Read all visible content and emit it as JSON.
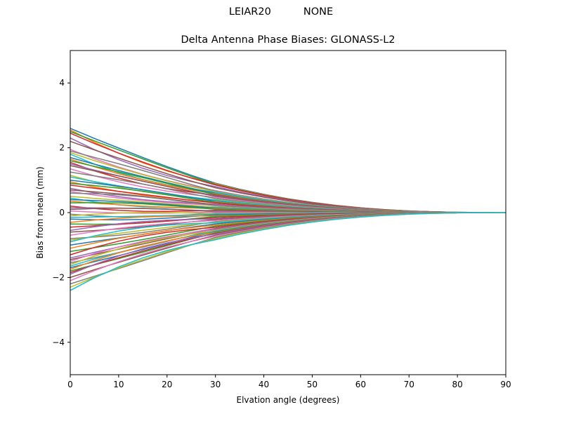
{
  "figure": {
    "suptitle": "LEIAR20          NONE",
    "title": "Delta Antenna Phase Biases: GLONASS-L2"
  },
  "chart_data": {
    "type": "line",
    "title": "Delta Antenna Phase Biases: GLONASS-L2",
    "suptitle": "LEIAR20          NONE",
    "xlabel": "Elvation angle (degrees)",
    "ylabel": "Bias from mean (mm)",
    "xlim": [
      0,
      90
    ],
    "ylim": [
      -5,
      5
    ],
    "xticks": [
      0,
      10,
      20,
      30,
      40,
      50,
      60,
      70,
      80,
      90
    ],
    "yticks": [
      -4,
      -2,
      0,
      2,
      4
    ],
    "ytick_labels": [
      "−4",
      "−2",
      "0",
      "2",
      "4"
    ],
    "grid": false,
    "legend": "none",
    "x": [
      0,
      5,
      10,
      15,
      20,
      25,
      30,
      35,
      40,
      45,
      50,
      55,
      60,
      65,
      70,
      75,
      80,
      85,
      90
    ],
    "series_note": "Approximately 70 per-satellite curves; each starts at the listed value at 0 deg and decays toward 0 at 90 deg",
    "colors": [
      "#1f77b4",
      "#ff7f0e",
      "#2ca02c",
      "#d62728",
      "#9467bd",
      "#8c564b",
      "#e377c2",
      "#7f7f7f",
      "#bcbd22",
      "#17becf"
    ],
    "start_values": [
      2.6,
      2.55,
      2.5,
      2.45,
      2.3,
      2.2,
      1.95,
      1.9,
      1.85,
      1.8,
      1.7,
      1.65,
      1.6,
      1.55,
      1.5,
      1.45,
      1.35,
      1.25,
      1.15,
      1.1,
      1.0,
      0.95,
      0.9,
      0.85,
      0.75,
      0.7,
      0.65,
      0.6,
      0.5,
      0.45,
      0.4,
      0.35,
      0.3,
      0.2,
      0.15,
      0.1,
      0.05,
      -0.05,
      -0.1,
      -0.15,
      -0.2,
      -0.3,
      -0.35,
      -0.45,
      -0.55,
      -0.6,
      -0.7,
      -0.8,
      -0.85,
      -0.9,
      -1.0,
      -1.1,
      -1.2,
      -1.3,
      -1.4,
      -1.45,
      -1.5,
      -1.55,
      -1.6,
      -1.65,
      -1.7,
      -1.75,
      -1.8,
      -1.85,
      -1.9,
      -2.0,
      -2.1,
      -2.2,
      -2.3,
      -2.4
    ],
    "mid_offsets": [
      0.25,
      -0.15,
      0.3,
      0.1,
      -0.2,
      0.2,
      -0.1,
      0.35,
      0.05,
      -0.3,
      0.15,
      -0.05,
      0.25,
      -0.25,
      0.1,
      0.2,
      -0.15,
      0.3,
      -0.2,
      0.05
    ]
  }
}
